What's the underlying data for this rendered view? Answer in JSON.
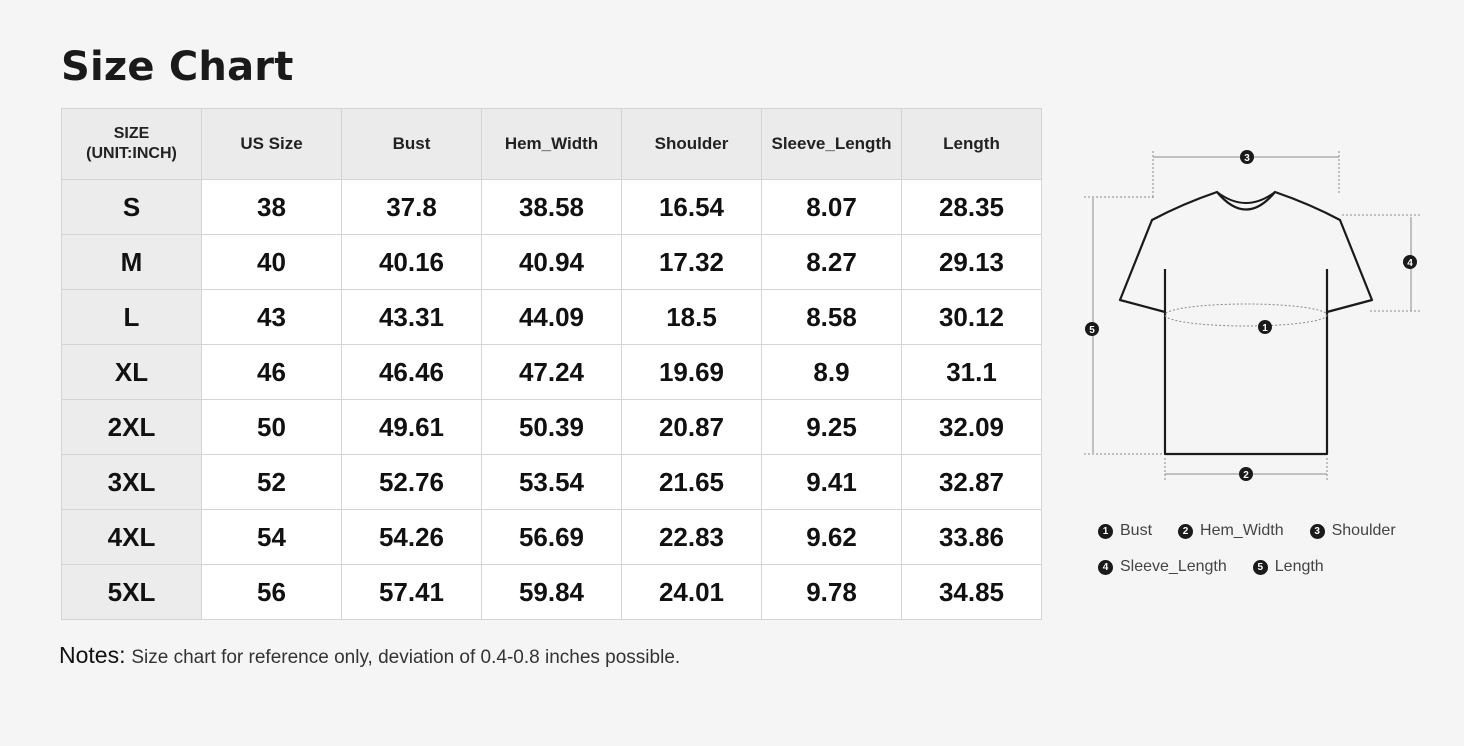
{
  "title": "Size Chart",
  "table": {
    "headers": [
      "SIZE\n(UNIT:INCH)",
      "US Size",
      "Bust",
      "Hem_Width",
      "Shoulder",
      "Sleeve_Length",
      "Length"
    ],
    "size_header_line1": "SIZE",
    "size_header_line2": "(UNIT:INCH)",
    "rows": [
      [
        "S",
        "38",
        "37.8",
        "38.58",
        "16.54",
        "8.07",
        "28.35"
      ],
      [
        "M",
        "40",
        "40.16",
        "40.94",
        "17.32",
        "8.27",
        "29.13"
      ],
      [
        "L",
        "43",
        "43.31",
        "44.09",
        "18.5",
        "8.58",
        "30.12"
      ],
      [
        "XL",
        "46",
        "46.46",
        "47.24",
        "19.69",
        "8.9",
        "31.1"
      ],
      [
        "2XL",
        "50",
        "49.61",
        "50.39",
        "20.87",
        "9.25",
        "32.09"
      ],
      [
        "3XL",
        "52",
        "52.76",
        "53.54",
        "21.65",
        "9.41",
        "32.87"
      ],
      [
        "4XL",
        "54",
        "54.26",
        "56.69",
        "22.83",
        "9.62",
        "33.86"
      ],
      [
        "5XL",
        "56",
        "57.41",
        "59.84",
        "24.01",
        "9.78",
        "34.85"
      ]
    ]
  },
  "notes": {
    "label": "Notes:",
    "text": "Size chart for reference only, deviation of 0.4-0.8 inches possible."
  },
  "diagram": {
    "markers": [
      "1",
      "2",
      "3",
      "4",
      "5"
    ]
  },
  "legend": [
    {
      "num": "1",
      "label": "Bust"
    },
    {
      "num": "2",
      "label": "Hem_Width"
    },
    {
      "num": "3",
      "label": "Shoulder"
    },
    {
      "num": "4",
      "label": "Sleeve_Length"
    },
    {
      "num": "5",
      "label": "Length"
    }
  ],
  "colors": {
    "background": "#f5f5f5",
    "header_bg": "#ebebeb",
    "cell_bg": "#ffffff",
    "border": "#d4d4d4",
    "text": "#1a1a1a"
  }
}
